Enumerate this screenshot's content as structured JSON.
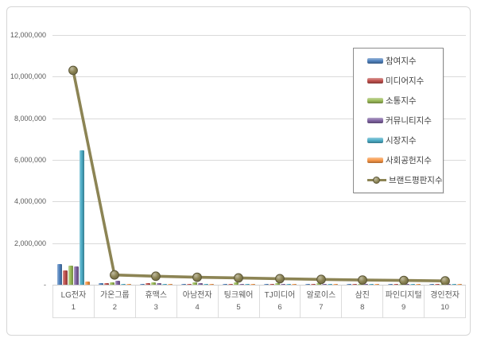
{
  "chart_data": {
    "type": "bar",
    "note": "grouped bar chart with overlaid line series, Korean brand reputation index ranking",
    "categories": [
      "LG전자",
      "가온그룹",
      "휴맥스",
      "아남전자",
      "팅크웨어",
      "TJ미디어",
      "알로이스",
      "삼진",
      "파인디지털",
      "경인전자"
    ],
    "category_ranks": [
      "1",
      "2",
      "3",
      "4",
      "5",
      "6",
      "7",
      "8",
      "9",
      "10"
    ],
    "series": [
      {
        "name": "참여지수",
        "type": "bar",
        "color": "#4f81bd",
        "values": [
          990000,
          60000,
          50000,
          45000,
          40000,
          35000,
          30000,
          25000,
          25000,
          20000
        ]
      },
      {
        "name": "미디어지수",
        "type": "bar",
        "color": "#c0504d",
        "values": [
          700000,
          95000,
          65000,
          55000,
          50000,
          50000,
          45000,
          40000,
          35000,
          30000
        ]
      },
      {
        "name": "소통지수",
        "type": "bar",
        "color": "#9bbb59",
        "values": [
          930000,
          100000,
          130000,
          130000,
          110000,
          85000,
          65000,
          55000,
          45000,
          40000
        ]
      },
      {
        "name": "커뮤니티지수",
        "type": "bar",
        "color": "#8064a2",
        "values": [
          890000,
          200000,
          95000,
          65000,
          55000,
          45000,
          40000,
          35000,
          30000,
          25000
        ]
      },
      {
        "name": "시장지수",
        "type": "bar",
        "color": "#4bacc6",
        "values": [
          6470000,
          55000,
          45000,
          40000,
          35000,
          30000,
          25000,
          20000,
          20000,
          15000
        ]
      },
      {
        "name": "사회공헌지수",
        "type": "bar",
        "color": "#f79646",
        "values": [
          150000,
          35000,
          30000,
          25000,
          20000,
          20000,
          15000,
          15000,
          10000,
          10000
        ]
      },
      {
        "name": "브랜드평판지수",
        "type": "line",
        "color": "#8c8454",
        "values": [
          10300000,
          470000,
          410000,
          360000,
          330000,
          290000,
          255000,
          225000,
          205000,
          185000
        ]
      }
    ],
    "title": "",
    "xlabel": "",
    "ylabel": "",
    "ylim": [
      0,
      12000000
    ],
    "ytick_step": 2000000,
    "ytick_labels": [
      "-",
      "2,000,000",
      "4,000,000",
      "6,000,000",
      "8,000,000",
      "10,000,000",
      "12,000,000"
    ],
    "grid": true,
    "legend_position": "inside-top-right",
    "colors": {
      "gridline": "#dadada",
      "axis_text": "#595959",
      "legend_border": "#8c8c8c",
      "legend_text": "#3f3f3f",
      "panel_border": "#d6d6d6"
    }
  }
}
